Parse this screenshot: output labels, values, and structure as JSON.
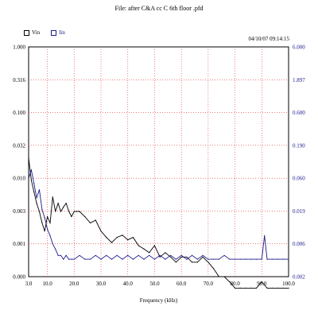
{
  "chart_data": {
    "type": "line",
    "title": "File: after C&A cc C 6th floor .pfd",
    "timestamp": "04/10/07 09:14:15",
    "xlabel": "Frequency (kHz)",
    "xlim": [
      3.0,
      100.0
    ],
    "x_ticks": [
      "3.0",
      "10.0",
      "20.0",
      "30.0",
      "40.0",
      "50.0",
      "60.0",
      "70.0",
      "80.0",
      "90.0",
      "100.0"
    ],
    "left_axis_ticks": [
      "1.000",
      "0.316",
      "0.100",
      "0.032",
      "0.010",
      "0.003",
      "0.001",
      "0.000"
    ],
    "right_axis_ticks": [
      "6.000",
      "1.897",
      "0.600",
      "0.190",
      "0.060",
      "0.019",
      "0.006",
      "0.002"
    ],
    "axis_scale": "log",
    "grid": true,
    "legend": "top-left",
    "series": [
      {
        "name": "Vin",
        "color": "#000000",
        "axis": "left",
        "x": [
          3,
          4,
          5,
          6,
          7,
          8,
          9,
          10,
          11,
          12,
          13,
          14,
          15,
          16,
          17,
          18,
          19,
          20,
          22,
          24,
          26,
          28,
          30,
          32,
          34,
          36,
          38,
          40,
          42,
          44,
          46,
          48,
          50,
          52,
          54,
          56,
          58,
          60,
          62,
          64,
          66,
          68,
          70,
          72,
          74,
          76,
          78,
          80,
          82,
          84,
          86,
          88,
          90,
          92,
          94,
          96,
          98,
          100
        ],
        "y": [
          0.02,
          0.009,
          0.006,
          0.004,
          0.003,
          0.002,
          0.0015,
          0.0025,
          0.002,
          0.005,
          0.003,
          0.004,
          0.003,
          0.0035,
          0.004,
          0.003,
          0.0025,
          0.003,
          0.003,
          0.0025,
          0.002,
          0.0022,
          0.0015,
          0.0012,
          0.001,
          0.0012,
          0.0013,
          0.0011,
          0.0012,
          0.0009,
          0.0008,
          0.0007,
          0.0009,
          0.0006,
          0.0007,
          0.0006,
          0.0005,
          0.0006,
          0.0006,
          0.0005,
          0.0005,
          0.0006,
          0.0005,
          0.0004,
          0.0003,
          0.0003,
          0.00025,
          0.0002,
          0.0002,
          0.0002,
          0.0002,
          0.0002,
          0.00025,
          0.0002,
          0.0002,
          0.0002,
          0.0002,
          0.0002
        ]
      },
      {
        "name": "Iin",
        "color": "#1a1a8c",
        "axis": "right",
        "x": [
          3,
          4,
          5,
          6,
          7,
          8,
          9,
          10,
          11,
          12,
          13,
          14,
          15,
          16,
          17,
          18,
          19,
          20,
          22,
          24,
          26,
          28,
          30,
          32,
          34,
          36,
          38,
          40,
          42,
          44,
          46,
          48,
          50,
          52,
          54,
          56,
          58,
          60,
          62,
          64,
          66,
          68,
          70,
          72,
          74,
          76,
          78,
          80,
          82,
          84,
          86,
          88,
          90,
          91,
          92,
          94,
          96,
          98,
          100
        ],
        "y": [
          0.06,
          0.08,
          0.05,
          0.03,
          0.04,
          0.02,
          0.015,
          0.01,
          0.008,
          0.006,
          0.005,
          0.004,
          0.004,
          0.0035,
          0.004,
          0.0035,
          0.0035,
          0.0035,
          0.004,
          0.0035,
          0.0035,
          0.004,
          0.0035,
          0.004,
          0.0035,
          0.004,
          0.0035,
          0.004,
          0.0035,
          0.004,
          0.0035,
          0.004,
          0.0035,
          0.004,
          0.0035,
          0.004,
          0.0035,
          0.004,
          0.0035,
          0.004,
          0.0035,
          0.004,
          0.0035,
          0.0035,
          0.0035,
          0.004,
          0.0035,
          0.0035,
          0.0035,
          0.0035,
          0.0035,
          0.0035,
          0.0035,
          0.008,
          0.0035,
          0.0035,
          0.0035,
          0.0035,
          0.0035
        ]
      }
    ]
  },
  "legend_items": [
    {
      "label": "Vin"
    },
    {
      "label": "Iin"
    }
  ]
}
